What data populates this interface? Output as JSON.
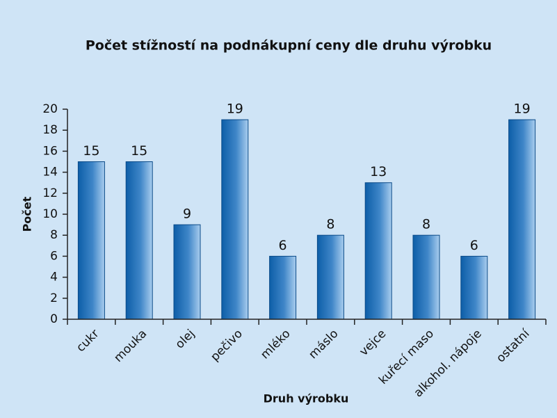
{
  "chart_data": {
    "type": "bar",
    "title": "Počet stížností na podnákupní ceny dle druhu výrobku",
    "x_label": "Druh výrobku",
    "y_label": "Počet",
    "categories": [
      "cukr",
      "mouka",
      "olej",
      "pečivo",
      "mléko",
      "máslo",
      "vejce",
      "kuřecí maso",
      "alkohol. nápoje",
      "ostatní"
    ],
    "values": [
      15,
      15,
      9,
      19,
      6,
      8,
      13,
      8,
      6,
      19
    ],
    "color": "#0d5ea8",
    "ylim": [
      0,
      20
    ],
    "yticks": [
      0,
      2,
      4,
      6,
      8,
      10,
      12,
      14,
      16,
      18,
      20
    ]
  }
}
